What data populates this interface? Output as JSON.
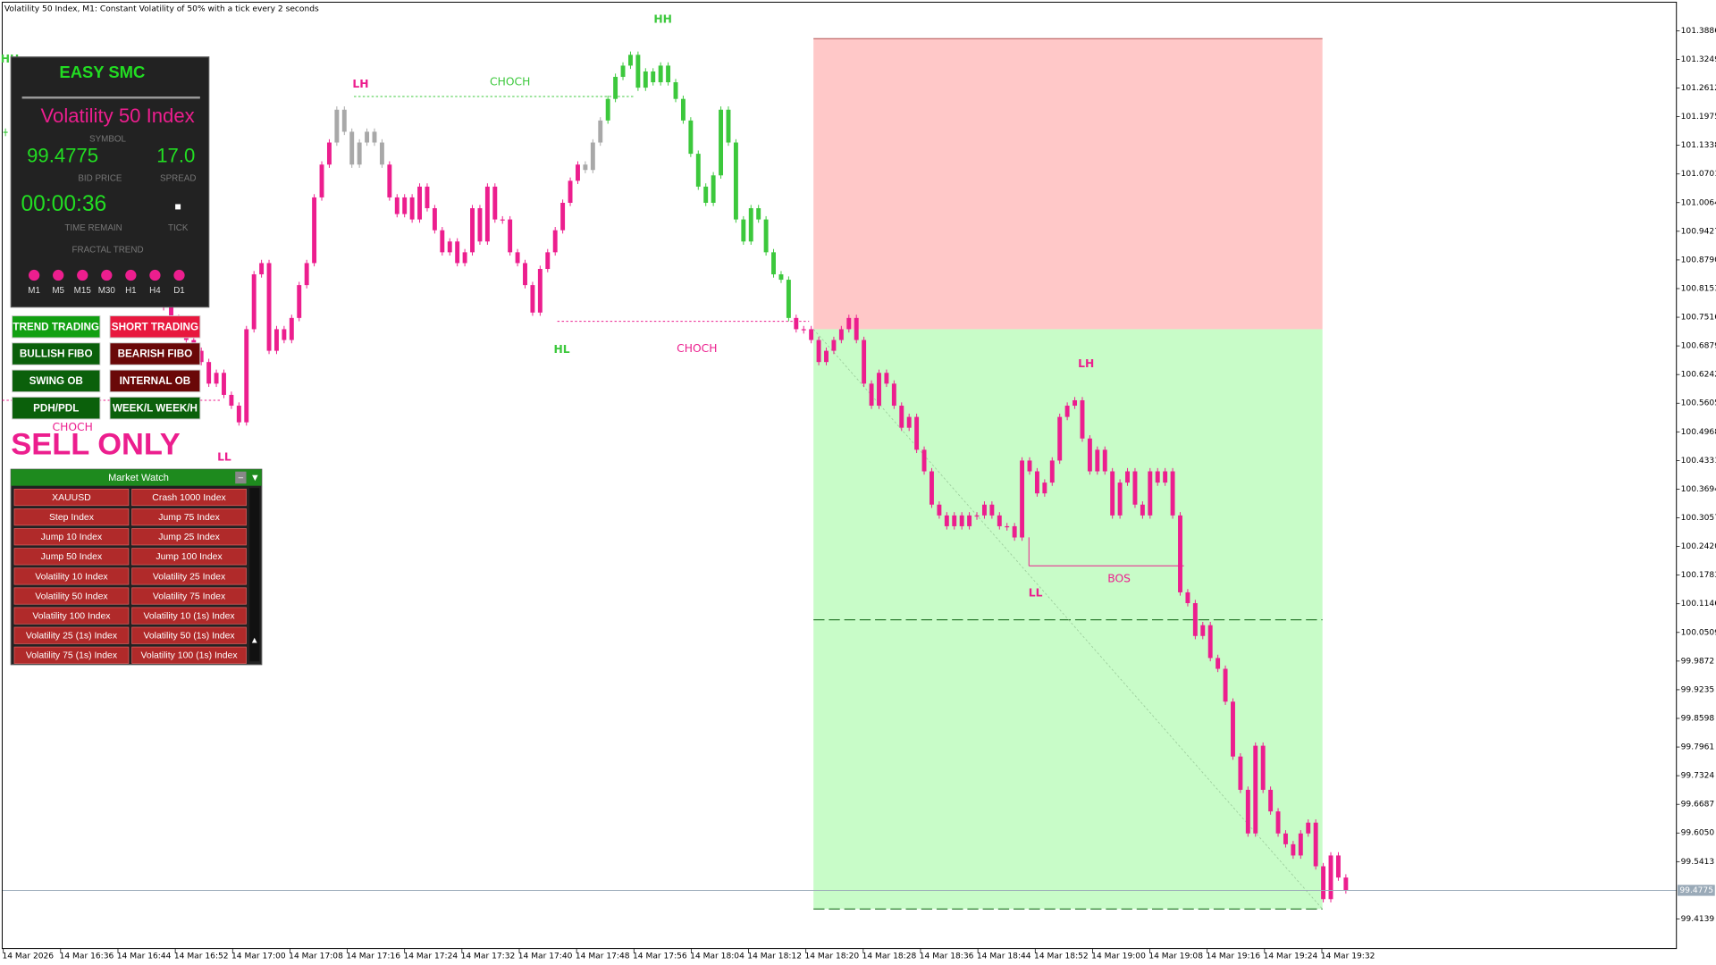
{
  "window_title": "Volatility 50 Index, M1:  Constant Volatility of 50% with a tick every 2 seconds",
  "chart_data": {
    "type": "candlestick",
    "segments": [
      {
        "color": "#3cc83c",
        "close": [
          101.164,
          101.213,
          101.262,
          101.237
        ]
      },
      {
        "color": "#ec1e8e",
        "close": [
          101.189,
          101.14,
          101.091,
          101.115,
          101.067,
          101.018,
          101.042,
          100.994,
          100.945,
          100.969,
          100.92,
          100.872,
          100.896,
          100.847,
          100.823,
          100.847,
          100.799,
          100.774,
          100.75,
          100.725,
          100.701,
          100.677,
          100.652,
          100.604,
          100.628,
          100.579,
          100.555,
          100.518,
          100.725,
          100.847,
          100.872,
          100.677,
          100.725,
          100.701,
          100.75,
          100.823,
          100.872,
          101.018,
          101.091,
          101.14
        ]
      },
      {
        "color": "#a8a8a8",
        "close": [
          101.213,
          101.164,
          101.091,
          101.14,
          101.164,
          101.14,
          101.091
        ]
      },
      {
        "color": "#ec1e8e",
        "close": [
          101.018,
          100.981,
          101.018,
          100.969,
          101.042,
          100.994,
          100.945,
          100.896,
          100.92,
          100.872,
          100.896,
          100.994,
          100.92,
          101.042,
          100.969,
          100.969,
          100.896,
          100.872,
          100.823,
          100.762,
          100.859,
          100.896,
          100.945,
          101.006,
          101.055,
          101.091
        ]
      },
      {
        "color": "#a8a8a8",
        "close": [
          101.079,
          101.14,
          101.189
        ]
      },
      {
        "color": "#3cc83c",
        "close": [
          101.237,
          101.286,
          101.311,
          101.335,
          101.262,
          101.298,
          101.274,
          101.311,
          101.274,
          101.237,
          101.189,
          101.115,
          101.042,
          101.006,
          101.067,
          101.213,
          101.14,
          100.969,
          100.92,
          100.994,
          100.969,
          100.896,
          100.847,
          100.835,
          100.75
        ]
      },
      {
        "color": "#ec1e8e",
        "close": [
          100.725,
          100.725,
          100.701,
          100.652,
          100.677,
          100.701,
          100.725,
          100.75,
          100.701,
          100.604,
          100.555,
          100.628,
          100.604,
          100.555,
          100.506,
          100.53,
          100.457,
          100.409,
          100.335,
          100.311,
          100.287,
          100.311,
          100.287,
          100.311,
          100.311,
          100.335,
          100.311,
          100.287,
          100.287,
          100.262,
          100.433,
          100.409,
          100.36,
          100.384,
          100.433,
          100.53,
          100.555,
          100.567,
          100.482,
          100.409,
          100.457,
          100.409,
          100.311,
          100.384,
          100.409,
          100.335,
          100.311,
          100.409,
          100.384,
          100.409,
          100.311,
          100.14,
          100.116,
          100.043,
          100.067,
          99.994,
          99.97,
          99.897,
          99.775,
          99.701,
          99.604,
          99.799,
          99.701,
          99.653,
          99.604,
          99.58,
          99.555,
          99.604,
          99.628,
          99.531,
          99.458,
          99.555,
          99.506,
          99.4775
        ]
      }
    ],
    "ylim": [
      99.3481,
      101.452
    ],
    "yticks": [
      101.3886,
      101.3249,
      101.2612,
      101.1975,
      101.1338,
      101.0701,
      101.0064,
      100.9427,
      {
        "value": 100.879,
        "label": "100.8790"
      },
      100.8153,
      100.7516,
      100.6879,
      100.6242,
      100.5605,
      100.4968,
      100.4331,
      100.3694,
      100.3057,
      {
        "value": 100.242,
        "label": "100.2420"
      },
      100.1783,
      100.1146,
      100.0509,
      99.9872,
      99.9235,
      99.8598,
      99.7961,
      99.7324,
      99.6687,
      {
        "value": 99.605,
        "label": "99.6050"
      },
      99.5413,
      99.4139
    ],
    "xticks": [
      "14 Mar 2026",
      "14 Mar 16:36",
      "14 Mar 16:44",
      "14 Mar 16:52",
      "14 Mar 17:00",
      "14 Mar 17:08",
      "14 Mar 17:16",
      "14 Mar 17:24",
      "14 Mar 17:32",
      "14 Mar 17:40",
      "14 Mar 17:48",
      "14 Mar 17:56",
      "14 Mar 18:04",
      "14 Mar 18:12",
      "14 Mar 18:20",
      "14 Mar 18:28",
      "14 Mar 18:36",
      "14 Mar 18:44",
      "14 Mar 18:52",
      "14 Mar 19:00",
      "14 Mar 19:08",
      "14 Mar 19:16",
      "14 Mar 19:24",
      "14 Mar 19:32"
    ],
    "current_price": 99.4775,
    "zone": {
      "stop": 101.371,
      "entry": 100.725,
      "midline": 100.079,
      "target": 99.436
    },
    "annotations": [
      {
        "text": "HH",
        "color": "#3cc83c"
      },
      {
        "text": "HH",
        "color": "#3cc83c"
      },
      {
        "text": "LH",
        "color": "#ec1e8e"
      },
      {
        "text": "CHOCH",
        "color": "#3cc83c"
      },
      {
        "text": "HL",
        "color": "#3cc83c"
      },
      {
        "text": "CHOCH",
        "color": "#ec1e8e"
      },
      {
        "text": "LH",
        "color": "#ec1e8e"
      },
      {
        "text": "LL",
        "color": "#ec1e8e"
      },
      {
        "text": "BOS",
        "color": "#ec1e8e"
      },
      {
        "text": "CHOCH",
        "color": "#ec1e8e"
      },
      {
        "text": "LL",
        "color": "#ec1e8e"
      }
    ]
  },
  "dashboard": {
    "title": "EASY SMC",
    "symbol": "Volatility 50 Index",
    "symbol_label": "SYMBOL",
    "bid": "99.4775",
    "bid_label": "BID PRICE",
    "spread": "17.0",
    "spread_label": "SPREAD",
    "time": "00:00:36",
    "time_label": "TIME REMAIN",
    "tick": "■",
    "tick_label": "TICK",
    "trend_label": "FRACTAL TREND",
    "timeframes": [
      "M1",
      "M5",
      "M15",
      "M30",
      "H1",
      "H4",
      "D1"
    ]
  },
  "buttons": [
    {
      "label": "TREND TRADING",
      "color": "#12a012"
    },
    {
      "label": "SHORT TRADING",
      "color": "#e8183e"
    },
    {
      "label": "BULLISH FIBO",
      "color": "#0b600b"
    },
    {
      "label": "BEARISH FIBO",
      "color": "#6a0808"
    },
    {
      "label": "SWING OB",
      "color": "#0b600b"
    },
    {
      "label": "INTERNAL OB",
      "color": "#6a0808"
    },
    {
      "label": "PDH/PDL",
      "color": "#0b600b"
    },
    {
      "label": "WEEK/L WEEK/H",
      "color": "#0b600b"
    }
  ],
  "sell_banner": "SELL ONLY",
  "market_watch": {
    "title": "Market Watch",
    "minimize": "–",
    "menu": "▼",
    "scroll": "▲",
    "symbols": [
      "XAUUSD",
      "Crash 1000 Index",
      "Step Index",
      "Jump 75 Index",
      "Jump 10 Index",
      "Jump 25 Index",
      "Jump 50 Index",
      "Jump 100 Index",
      "Volatility 10 Index",
      "Volatility 25 Index",
      "Volatility 50 Index",
      "Volatility 75 Index",
      "Volatility 100 Index",
      "Volatility 10 (1s) Index",
      "Volatility 25 (1s) Index",
      "Volatility 50 (1s) Index",
      "Volatility 75 (1s) Index",
      "Volatility 100 (1s) Index"
    ]
  }
}
